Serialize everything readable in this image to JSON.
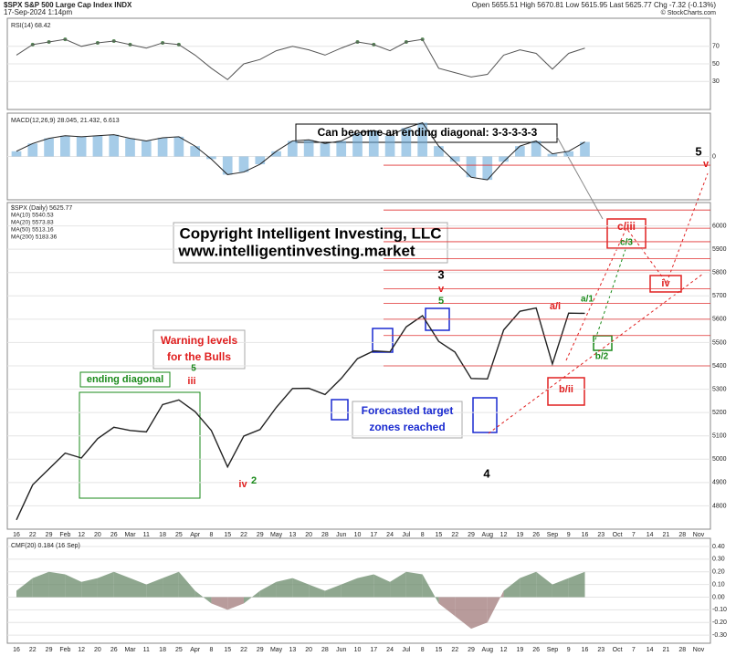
{
  "header": {
    "symbol": "$SPX S&P 500 Large Cap Index INDX",
    "date": "17-Sep-2024 1:14pm",
    "quote": "Open 5655.51  High 5670.81  Low 5615.95  Last 5625.77  Chg -7.32 (-0.13%)",
    "credit": "© StockCharts.com"
  },
  "chart_data": [
    {
      "type": "line",
      "title": "$SPX (Daily) 5625.77",
      "legend": [
        "MA(10) 5540.53",
        "MA(20) 5573.83",
        "MA(50) 5513.16",
        "MA(200) 5183.36"
      ],
      "categories": [
        "16",
        "22",
        "29",
        "Feb",
        "12",
        "20",
        "26",
        "Mar",
        "11",
        "18",
        "25",
        "Apr",
        "8",
        "15",
        "22",
        "29",
        "May",
        "13",
        "20",
        "28",
        "Jun",
        "10",
        "17",
        "24",
        "Jul",
        "8",
        "15",
        "22",
        "29",
        "Aug",
        "12",
        "19",
        "26",
        "Sep",
        "9",
        "16",
        "23",
        "Oct",
        "7",
        "14",
        "21",
        "28",
        "Nov"
      ],
      "series": [
        {
          "name": "$SPX",
          "color": "#222222",
          "values": [
            4740,
            4890,
            4958,
            5026,
            5005,
            5088,
            5137,
            5123,
            5117,
            5234,
            5254,
            5204,
            5123,
            4967,
            5099,
            5127,
            5222,
            5303,
            5304,
            5277,
            5346,
            5431,
            5464,
            5460,
            5567,
            5615,
            5505,
            5459,
            5346,
            5344,
            5554,
            5634,
            5648,
            5408,
            5626,
            5625,
            null,
            null,
            null,
            null,
            null,
            null,
            null
          ]
        }
      ],
      "levels": {
        "color": "#e03030",
        "values": [
          6260,
          6068,
          5990,
          5932,
          5860,
          5810,
          5730,
          5668,
          5600,
          5530,
          5400
        ]
      },
      "ylim": [
        4700,
        6100
      ],
      "yticks": [
        4800,
        4900,
        5000,
        5100,
        5200,
        5300,
        5400,
        5500,
        5600,
        5700,
        5800,
        5900,
        6000
      ],
      "grid": true,
      "annotations": [
        {
          "text": "Can become an ending diagonal: 3-3-3-3-3",
          "color": "#000000"
        },
        {
          "text": "Copyright Intelligent Investing, LLC",
          "color": "#000000"
        },
        {
          "text": "www.intelligentinvesting.market",
          "color": "#000000"
        },
        {
          "text": "Warning levels",
          "color": "#e02020"
        },
        {
          "text": "for the Bulls",
          "color": "#e02020"
        },
        {
          "text": "Forecasted target",
          "color": "#1a2ad0"
        },
        {
          "text": "zones reached",
          "color": "#1a2ad0"
        },
        {
          "text": "ending diagonal",
          "color": "#1a8a1a"
        },
        {
          "text": "3",
          "color": "#000000"
        },
        {
          "text": "v",
          "color": "#e02020"
        },
        {
          "text": "5",
          "color": "#1a8a1a"
        },
        {
          "text": "4",
          "color": "#000000"
        },
        {
          "text": "5",
          "color": "#000000"
        },
        {
          "text": "v",
          "color": "#e02020"
        },
        {
          "text": "iii",
          "color": "#e02020"
        },
        {
          "text": "iv",
          "color": "#e02020"
        },
        {
          "text": "2",
          "color": "#1a8a1a"
        },
        {
          "text": "c/iii",
          "color": "#e02020"
        },
        {
          "text": "c/3",
          "color": "#1a8a1a"
        },
        {
          "text": "iv",
          "color": "#e02020"
        },
        {
          "text": "b/ii",
          "color": "#e02020"
        },
        {
          "text": "b/2",
          "color": "#1a8a1a"
        },
        {
          "text": "a/i",
          "color": "#e02020"
        },
        {
          "text": "a/1",
          "color": "#1a8a1a"
        },
        {
          "text": "5",
          "color": "#1a8a1a"
        }
      ]
    },
    {
      "type": "line",
      "title": "RSI(14) 68.42",
      "series": [
        {
          "name": "RSI",
          "color": "#555555",
          "values": [
            60,
            72,
            75,
            78,
            70,
            74,
            76,
            72,
            68,
            74,
            72,
            60,
            45,
            32,
            50,
            55,
            65,
            70,
            66,
            60,
            68,
            75,
            72,
            65,
            75,
            78,
            45,
            40,
            35,
            38,
            60,
            66,
            62,
            44,
            62,
            68,
            null,
            null,
            null,
            null,
            null,
            null,
            null
          ]
        }
      ],
      "fill": "#5a8a5a",
      "ylim": [
        0,
        100
      ],
      "yticks": [
        30,
        50,
        70
      ]
    },
    {
      "type": "bar",
      "title": "MACD(12,26,9) 28.045, 21.432, 6.613",
      "series": [
        {
          "name": "MACD",
          "color": "#222222",
          "values": [
            10,
            25,
            35,
            40,
            38,
            40,
            42,
            35,
            30,
            36,
            38,
            20,
            -5,
            -35,
            -30,
            -15,
            10,
            30,
            32,
            25,
            30,
            45,
            50,
            40,
            55,
            65,
            20,
            -10,
            -40,
            -45,
            -10,
            20,
            30,
            5,
            10,
            28,
            null,
            null,
            null,
            null,
            null,
            null,
            null
          ]
        }
      ],
      "color": "#6aaad8",
      "ylim": [
        -80,
        80
      ],
      "yticks": [
        0
      ]
    },
    {
      "type": "area",
      "title": "CMF(20) 0.184 (16 Sep)",
      "series": [
        {
          "name": "CMF",
          "color": "#6a8a6a",
          "values": [
            0.05,
            0.15,
            0.2,
            0.18,
            0.12,
            0.15,
            0.2,
            0.15,
            0.1,
            0.15,
            0.2,
            0.05,
            -0.05,
            -0.1,
            -0.05,
            0.05,
            0.12,
            0.15,
            0.1,
            0.05,
            0.1,
            0.15,
            0.18,
            0.12,
            0.2,
            0.18,
            -0.05,
            -0.15,
            -0.25,
            -0.2,
            0.05,
            0.15,
            0.2,
            0.1,
            0.15,
            0.2,
            null,
            null,
            null,
            null,
            null,
            null,
            null
          ]
        }
      ],
      "negative_color": "#a07a7a",
      "ylim": [
        -0.35,
        0.45
      ],
      "yticks": [
        {
          "value": -0.3,
          "label": "-0.30"
        },
        {
          "value": -0.2,
          "label": "-0.20"
        },
        {
          "value": -0.1,
          "label": "-0.10"
        },
        {
          "value": 0,
          "label": "0.00"
        },
        {
          "value": 0.1,
          "label": "0.10"
        },
        {
          "value": 0.2,
          "label": "0.20"
        },
        {
          "value": 0.3,
          "label": "0.30"
        },
        {
          "value": 0.4,
          "label": "0.40"
        }
      ]
    }
  ]
}
